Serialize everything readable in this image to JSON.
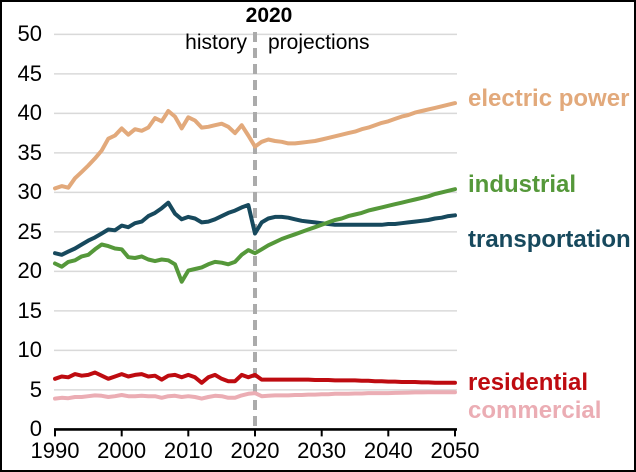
{
  "chart": {
    "divider_year_label": "2020",
    "history_label": "history",
    "projections_label": "projections"
  },
  "chart_data": {
    "type": "line",
    "title": "",
    "xlabel": "",
    "ylabel": "",
    "x_start": 1990,
    "x_step": 1,
    "x_end": 2050,
    "xlim": [
      1990,
      2050
    ],
    "ylim": [
      0,
      50
    ],
    "grid": "horizontal",
    "gridline_color": "#D9D9D9",
    "axis_color": "#000000",
    "divider_x": 2020,
    "divider_color": "#ABABAB",
    "x_ticks": [
      1990,
      2000,
      2010,
      2020,
      2030,
      2040,
      2050
    ],
    "x_tick_labels": [
      "1990",
      "2000",
      "2010",
      "2020",
      "2030",
      "2040",
      "2050"
    ],
    "y_ticks": [
      0,
      5,
      10,
      15,
      20,
      25,
      30,
      35,
      40,
      45,
      50
    ],
    "y_tick_labels": [
      "0",
      "5",
      "10",
      "15",
      "20",
      "25",
      "30",
      "35",
      "40",
      "45",
      "50"
    ],
    "legend_position": "right-of-line-ends",
    "series": [
      {
        "name": "electric_power",
        "label": "electric power",
        "color": "#E2A97B",
        "values": [
          30.5,
          30.8,
          30.6,
          31.8,
          32.6,
          33.4,
          34.3,
          35.3,
          36.8,
          37.2,
          38.1,
          37.3,
          38.0,
          37.8,
          38.2,
          39.4,
          39.0,
          40.3,
          39.6,
          38.1,
          39.5,
          39.1,
          38.2,
          38.3,
          38.5,
          38.7,
          38.3,
          37.5,
          38.5,
          37.2,
          35.8,
          36.4,
          36.7,
          36.5,
          36.4,
          36.2,
          36.2,
          36.3,
          36.4,
          36.5,
          36.7,
          36.9,
          37.1,
          37.3,
          37.5,
          37.7,
          38.0,
          38.2,
          38.5,
          38.8,
          39.0,
          39.3,
          39.6,
          39.8,
          40.1,
          40.3,
          40.5,
          40.7,
          40.9,
          41.1,
          41.3
        ]
      },
      {
        "name": "industrial",
        "label": "industrial",
        "color": "#55983A",
        "values": [
          21.0,
          20.6,
          21.2,
          21.4,
          21.9,
          22.1,
          22.8,
          23.4,
          23.2,
          22.9,
          22.8,
          21.8,
          21.7,
          21.9,
          21.5,
          21.3,
          21.5,
          21.4,
          20.9,
          18.7,
          20.1,
          20.3,
          20.5,
          20.9,
          21.2,
          21.1,
          20.9,
          21.2,
          22.1,
          22.7,
          22.3,
          22.8,
          23.3,
          23.7,
          24.1,
          24.4,
          24.7,
          25.0,
          25.3,
          25.6,
          25.9,
          26.2,
          26.5,
          26.7,
          27.0,
          27.2,
          27.4,
          27.7,
          27.9,
          28.1,
          28.3,
          28.5,
          28.7,
          28.9,
          29.1,
          29.3,
          29.5,
          29.8,
          30.0,
          30.2,
          30.4
        ]
      },
      {
        "name": "transportation",
        "label": "transportation",
        "color": "#17495D",
        "values": [
          22.3,
          22.1,
          22.5,
          22.9,
          23.4,
          23.9,
          24.3,
          24.8,
          25.3,
          25.2,
          25.8,
          25.6,
          26.1,
          26.3,
          27.0,
          27.4,
          28.0,
          28.7,
          27.3,
          26.6,
          26.9,
          26.7,
          26.2,
          26.3,
          26.6,
          27.0,
          27.4,
          27.7,
          28.1,
          28.4,
          24.8,
          26.2,
          26.7,
          26.9,
          26.9,
          26.8,
          26.6,
          26.4,
          26.3,
          26.2,
          26.1,
          26.0,
          25.9,
          25.9,
          25.9,
          25.9,
          25.9,
          25.9,
          25.9,
          25.9,
          26.0,
          26.0,
          26.1,
          26.2,
          26.3,
          26.4,
          26.5,
          26.7,
          26.8,
          27.0,
          27.1
        ]
      },
      {
        "name": "residential",
        "label": "residential",
        "color": "#BE0B10",
        "values": [
          6.4,
          6.7,
          6.6,
          7.0,
          6.8,
          6.9,
          7.2,
          6.8,
          6.4,
          6.7,
          7.0,
          6.7,
          6.9,
          7.0,
          6.7,
          6.8,
          6.3,
          6.8,
          6.9,
          6.6,
          6.9,
          6.6,
          5.9,
          6.6,
          6.9,
          6.4,
          6.1,
          6.1,
          6.9,
          6.6,
          6.9,
          6.3,
          6.3,
          6.3,
          6.3,
          6.3,
          6.3,
          6.3,
          6.3,
          6.25,
          6.25,
          6.25,
          6.2,
          6.2,
          6.2,
          6.2,
          6.15,
          6.15,
          6.1,
          6.1,
          6.05,
          6.05,
          6.0,
          6.0,
          6.0,
          5.95,
          5.95,
          5.9,
          5.9,
          5.9,
          5.9
        ]
      },
      {
        "name": "commercial",
        "label": "commercial",
        "color": "#EBADB4",
        "values": [
          3.9,
          4.0,
          3.95,
          4.1,
          4.1,
          4.2,
          4.3,
          4.25,
          4.1,
          4.2,
          4.35,
          4.2,
          4.2,
          4.25,
          4.2,
          4.2,
          4.0,
          4.2,
          4.25,
          4.1,
          4.2,
          4.1,
          3.9,
          4.1,
          4.25,
          4.2,
          4.0,
          4.0,
          4.3,
          4.5,
          4.6,
          4.2,
          4.25,
          4.3,
          4.3,
          4.3,
          4.35,
          4.35,
          4.4,
          4.4,
          4.45,
          4.45,
          4.5,
          4.5,
          4.5,
          4.55,
          4.55,
          4.6,
          4.6,
          4.6,
          4.6,
          4.62,
          4.64,
          4.66,
          4.68,
          4.68,
          4.7,
          4.7,
          4.7,
          4.7,
          4.7
        ]
      }
    ]
  }
}
